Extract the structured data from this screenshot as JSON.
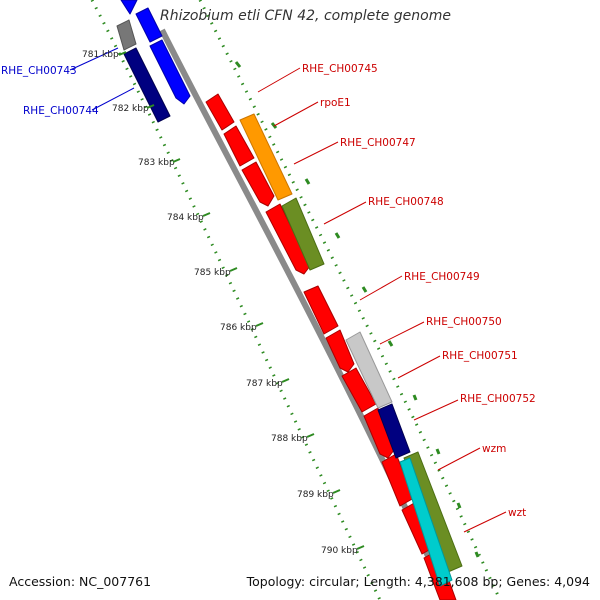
{
  "title": "Rhizobium etli CFN 42, complete genome",
  "footer": {
    "accession": "Accession: NC_007761",
    "info": "Topology: circular; Length: 4,381,608 bp; Genes: 4,094"
  },
  "scale": {
    "ticks": [
      "781 kbp",
      "782 kbp",
      "783 kbp",
      "784 kbp",
      "785 kbp",
      "786 kbp",
      "787 kbp",
      "788 kbp",
      "789 kbp",
      "790 kbp"
    ]
  },
  "labels": {
    "left": [
      "RHE_CH00743",
      "RHE_CH00744"
    ],
    "right": [
      "RHE_CH00745",
      "rpoE1",
      "RHE_CH00747",
      "RHE_CH00748",
      "RHE_CH00749",
      "RHE_CH00750",
      "RHE_CH00751",
      "RHE_CH00752",
      "wzm",
      "wzt"
    ]
  },
  "colors": {
    "backbone": "#888888",
    "tick_marks": "#2e8b22",
    "gene_label_left": "#0000cc",
    "gene_label_right": "#cc0000",
    "gene_red": "#ff0000",
    "gene_orange": "#ff9900",
    "gene_olive": "#6b8e23",
    "gene_blue": "#0000ff",
    "gene_navy": "#000080",
    "gene_gray": "#777777",
    "gene_light_gray": "#c8c8c8",
    "gene_cyan": "#00cccc"
  }
}
